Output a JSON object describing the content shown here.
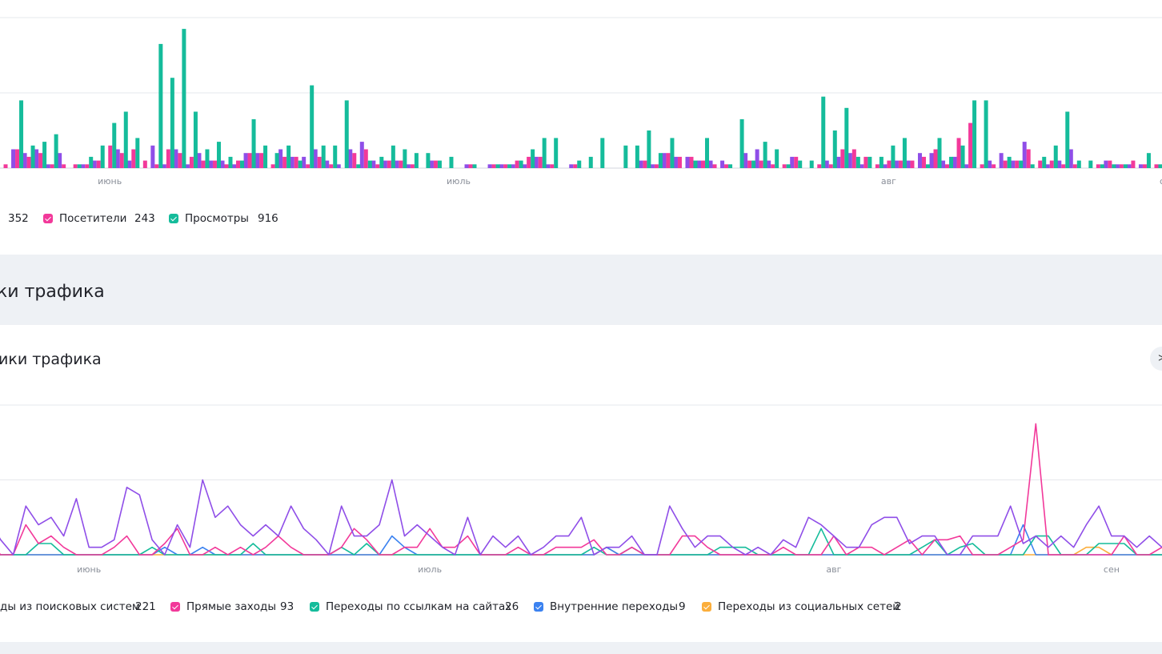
{
  "top_chart": {
    "legend": [
      {
        "label": "",
        "value": "352",
        "color": "#8f4ee8"
      },
      {
        "label": "Посетители",
        "value": "243",
        "color": "#f2399a"
      },
      {
        "label": "Просмотры",
        "value": "916",
        "color": "#15bc9b"
      }
    ]
  },
  "section": {
    "title": "ки трафика"
  },
  "traffic_widget": {
    "title": "ики трафика",
    "expand_icon": "expand-icon"
  },
  "bottom_chart": {
    "legend": [
      {
        "label": "ды из поисковых систем",
        "value": "221",
        "color": "#8f4ee8"
      },
      {
        "label": "Прямые заходы",
        "value": "93",
        "color": "#f2399a"
      },
      {
        "label": "Переходы по ссылкам на сайтах",
        "value": "26",
        "color": "#15bc9b"
      },
      {
        "label": "Внутренние переходы",
        "value": "9",
        "color": "#3b82f0"
      },
      {
        "label": "Переходы из социальных сетей",
        "value": "2",
        "color": "#fbae3c"
      }
    ]
  },
  "chart_data": [
    {
      "type": "bar",
      "title": "",
      "xlabel": "",
      "ylabel": "",
      "ylim": [
        0,
        40
      ],
      "grid": true,
      "legend_position": "bottom",
      "x_ticks": [
        {
          "label": "июнь",
          "index": 10
        },
        {
          "label": "июль",
          "index": 40
        },
        {
          "label": "авг",
          "index": 77
        },
        {
          "label": "сен",
          "index": 101
        }
      ],
      "series": [
        {
          "name": "",
          "values": [
            2,
            0,
            5,
            4,
            5,
            1,
            4,
            0,
            1,
            2,
            0,
            5,
            2,
            0,
            6,
            1,
            5,
            1,
            4,
            2,
            2,
            1,
            4,
            4,
            0,
            5,
            3,
            3,
            5,
            2,
            1,
            5,
            7,
            2,
            2,
            2,
            1,
            0,
            2,
            0,
            0,
            1,
            0,
            1,
            1,
            1,
            1,
            3,
            1,
            0,
            1,
            0,
            0,
            0,
            0,
            0,
            2,
            1,
            4,
            3,
            3,
            2,
            2,
            2,
            0,
            4,
            5,
            2,
            0,
            3,
            0,
            0,
            2,
            3,
            4,
            1,
            0,
            1,
            2,
            2,
            4,
            4,
            2,
            3,
            1,
            0,
            2,
            4,
            2,
            7,
            0,
            1,
            2,
            5,
            0,
            0,
            2,
            1,
            1,
            1,
            0
          ]
        },
        {
          "name": "Посетители",
          "values": [
            1,
            1,
            5,
            3,
            4,
            1,
            1,
            1,
            1,
            2,
            6,
            4,
            5,
            2,
            1,
            5,
            4,
            3,
            2,
            2,
            1,
            2,
            4,
            4,
            1,
            3,
            3,
            1,
            3,
            1,
            0,
            4,
            5,
            1,
            2,
            2,
            1,
            0,
            2,
            0,
            0,
            1,
            0,
            1,
            1,
            2,
            3,
            3,
            1,
            0,
            1,
            0,
            0,
            0,
            0,
            0,
            2,
            1,
            4,
            3,
            3,
            2,
            1,
            1,
            0,
            2,
            2,
            1,
            1,
            3,
            0,
            1,
            1,
            5,
            5,
            3,
            1,
            2,
            2,
            2,
            3,
            5,
            1,
            8,
            12,
            1,
            1,
            2,
            2,
            5,
            2,
            2,
            1,
            1,
            0,
            1,
            2,
            1,
            2,
            1,
            1
          ]
        },
        {
          "name": "Просмотры",
          "values": [
            24,
            0,
            18,
            6,
            7,
            9,
            0,
            1,
            3,
            6,
            12,
            15,
            8,
            0,
            33,
            24,
            37,
            15,
            5,
            7,
            3,
            2,
            13,
            6,
            4,
            6,
            2,
            22,
            6,
            6,
            18,
            1,
            2,
            3,
            6,
            5,
            4,
            4,
            2,
            3,
            0,
            1,
            0,
            1,
            1,
            2,
            5,
            8,
            8,
            0,
            2,
            3,
            8,
            0,
            6,
            6,
            10,
            4,
            8,
            0,
            2,
            8,
            0,
            1,
            13,
            2,
            7,
            5,
            1,
            2,
            2,
            19,
            10,
            16,
            3,
            3,
            3,
            6,
            8,
            0,
            1,
            8,
            3,
            6,
            18,
            18,
            0,
            3,
            2,
            1,
            3,
            6,
            15,
            2,
            2,
            1,
            1,
            1,
            0,
            4,
            1
          ]
        }
      ]
    },
    {
      "type": "line",
      "title": "",
      "xlabel": "",
      "ylabel": "",
      "ylim": [
        0,
        40
      ],
      "grid": true,
      "legend_position": "bottom",
      "x_ticks": [
        {
          "label": "июнь",
          "index": 8
        },
        {
          "label": "июль",
          "index": 35
        },
        {
          "label": "авг",
          "index": 67
        },
        {
          "label": "сен",
          "index": 89
        }
      ],
      "series": [
        {
          "name": "ды из поисковых систем",
          "values": [
            10,
            4,
            0,
            13,
            8,
            10,
            5,
            15,
            2,
            2,
            4,
            18,
            16,
            4,
            0,
            8,
            2,
            20,
            10,
            13,
            8,
            5,
            8,
            5,
            13,
            7,
            4,
            0,
            13,
            5,
            5,
            8,
            20,
            5,
            8,
            5,
            2,
            0,
            10,
            0,
            5,
            2,
            5,
            0,
            2,
            5,
            5,
            10,
            0,
            2,
            2,
            5,
            0,
            0,
            13,
            7,
            2,
            5,
            5,
            2,
            0,
            2,
            0,
            4,
            2,
            10,
            8,
            5,
            2,
            2,
            8,
            10,
            10,
            3,
            5,
            5,
            0,
            0,
            5,
            5,
            5,
            13,
            3,
            5,
            2,
            5,
            2,
            8,
            13,
            5,
            5,
            2,
            5,
            2
          ]
        },
        {
          "name": "Прямые заходы",
          "values": [
            4,
            0,
            0,
            8,
            3,
            5,
            2,
            0,
            0,
            0,
            2,
            5,
            0,
            0,
            3,
            7,
            0,
            0,
            2,
            0,
            2,
            0,
            2,
            5,
            2,
            0,
            0,
            0,
            2,
            7,
            4,
            0,
            0,
            2,
            2,
            7,
            2,
            2,
            5,
            0,
            0,
            0,
            2,
            0,
            0,
            2,
            2,
            2,
            4,
            0,
            0,
            2,
            0,
            0,
            0,
            5,
            5,
            2,
            0,
            0,
            0,
            0,
            0,
            2,
            0,
            0,
            0,
            5,
            0,
            2,
            2,
            0,
            2,
            4,
            0,
            4,
            4,
            5,
            0,
            0,
            0,
            2,
            4,
            35,
            0,
            0,
            0,
            0,
            0,
            0,
            5,
            0,
            0,
            2
          ]
        },
        {
          "name": "Переходы по ссылкам на сайтах",
          "values": [
            0,
            0,
            0,
            0,
            3,
            3,
            0,
            0,
            0,
            0,
            0,
            0,
            0,
            2,
            0,
            0,
            0,
            0,
            0,
            0,
            0,
            3,
            0,
            0,
            0,
            0,
            0,
            0,
            2,
            0,
            3,
            0,
            0,
            0,
            0,
            0,
            0,
            0,
            0,
            0,
            0,
            0,
            0,
            0,
            0,
            0,
            0,
            0,
            2,
            0,
            0,
            2,
            0,
            0,
            0,
            0,
            0,
            0,
            2,
            2,
            2,
            0,
            0,
            0,
            0,
            0,
            7,
            0,
            0,
            0,
            0,
            0,
            0,
            0,
            2,
            4,
            0,
            2,
            3,
            0,
            0,
            0,
            0,
            5,
            5,
            0,
            0,
            0,
            3,
            3,
            3,
            0,
            0,
            0
          ]
        },
        {
          "name": "Внутренние переходы",
          "values": [
            0,
            0,
            0,
            0,
            0,
            0,
            0,
            0,
            0,
            0,
            0,
            0,
            0,
            0,
            2,
            0,
            0,
            2,
            0,
            0,
            0,
            0,
            0,
            0,
            0,
            0,
            0,
            0,
            0,
            0,
            0,
            0,
            5,
            2,
            0,
            0,
            0,
            0,
            0,
            0,
            0,
            0,
            0,
            0,
            0,
            0,
            0,
            0,
            0,
            2,
            0,
            0,
            0,
            0,
            0,
            0,
            0,
            0,
            0,
            0,
            0,
            0,
            0,
            0,
            0,
            0,
            0,
            0,
            0,
            0,
            0,
            0,
            0,
            0,
            0,
            0,
            0,
            0,
            0,
            0,
            0,
            0,
            8,
            0,
            0,
            0,
            0,
            0,
            0,
            0,
            0,
            0,
            0,
            0
          ]
        },
        {
          "name": "Переходы из социальных сетей",
          "values": [
            0,
            0,
            0,
            0,
            0,
            0,
            0,
            0,
            0,
            0,
            0,
            0,
            0,
            0,
            0,
            0,
            0,
            0,
            0,
            0,
            0,
            0,
            0,
            0,
            0,
            0,
            0,
            0,
            0,
            0,
            0,
            0,
            0,
            0,
            0,
            0,
            0,
            0,
            0,
            0,
            0,
            0,
            0,
            0,
            0,
            0,
            0,
            0,
            0,
            2,
            0,
            0,
            0,
            0,
            0,
            0,
            0,
            0,
            0,
            0,
            0,
            0,
            0,
            0,
            0,
            0,
            0,
            0,
            0,
            0,
            0,
            0,
            0,
            0,
            0,
            0,
            0,
            0,
            0,
            0,
            0,
            0,
            0,
            0,
            0,
            0,
            0,
            2,
            2,
            0,
            0,
            0,
            0,
            0
          ]
        }
      ]
    }
  ]
}
